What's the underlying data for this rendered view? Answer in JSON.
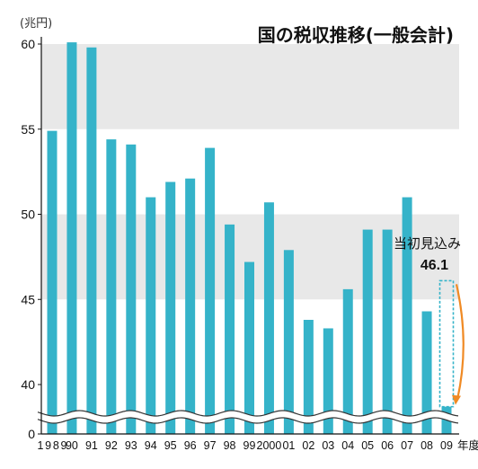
{
  "chart_data": {
    "type": "bar",
    "title": "国の税収推移(一般会計)",
    "unit_label": "(兆円)",
    "categories": [
      "1989",
      "90",
      "91",
      "92",
      "93",
      "94",
      "95",
      "96",
      "97",
      "98",
      "99",
      "2000",
      "01",
      "02",
      "03",
      "04",
      "05",
      "06",
      "07",
      "08",
      "09"
    ],
    "x_suffix": "年度",
    "values": [
      54.9,
      60.1,
      59.8,
      54.4,
      54.1,
      51.0,
      51.9,
      52.1,
      53.9,
      49.4,
      47.2,
      50.7,
      47.9,
      43.8,
      43.3,
      45.6,
      49.1,
      49.1,
      51.0,
      44.3,
      46.1
    ],
    "ylim": [
      40,
      61
    ],
    "yticks": [
      "40",
      "45",
      "50",
      "55",
      "60"
    ],
    "zero_label": "0",
    "axis_break": true,
    "grid": "horizontal bands",
    "colors": {
      "bar": "#35b3c9",
      "band": "#e8e8e8",
      "arrow": "#f08a24"
    },
    "annotation": {
      "label": "当初見込み",
      "value": "46.1",
      "category": "09",
      "actual_value_approx": 38.7
    }
  }
}
